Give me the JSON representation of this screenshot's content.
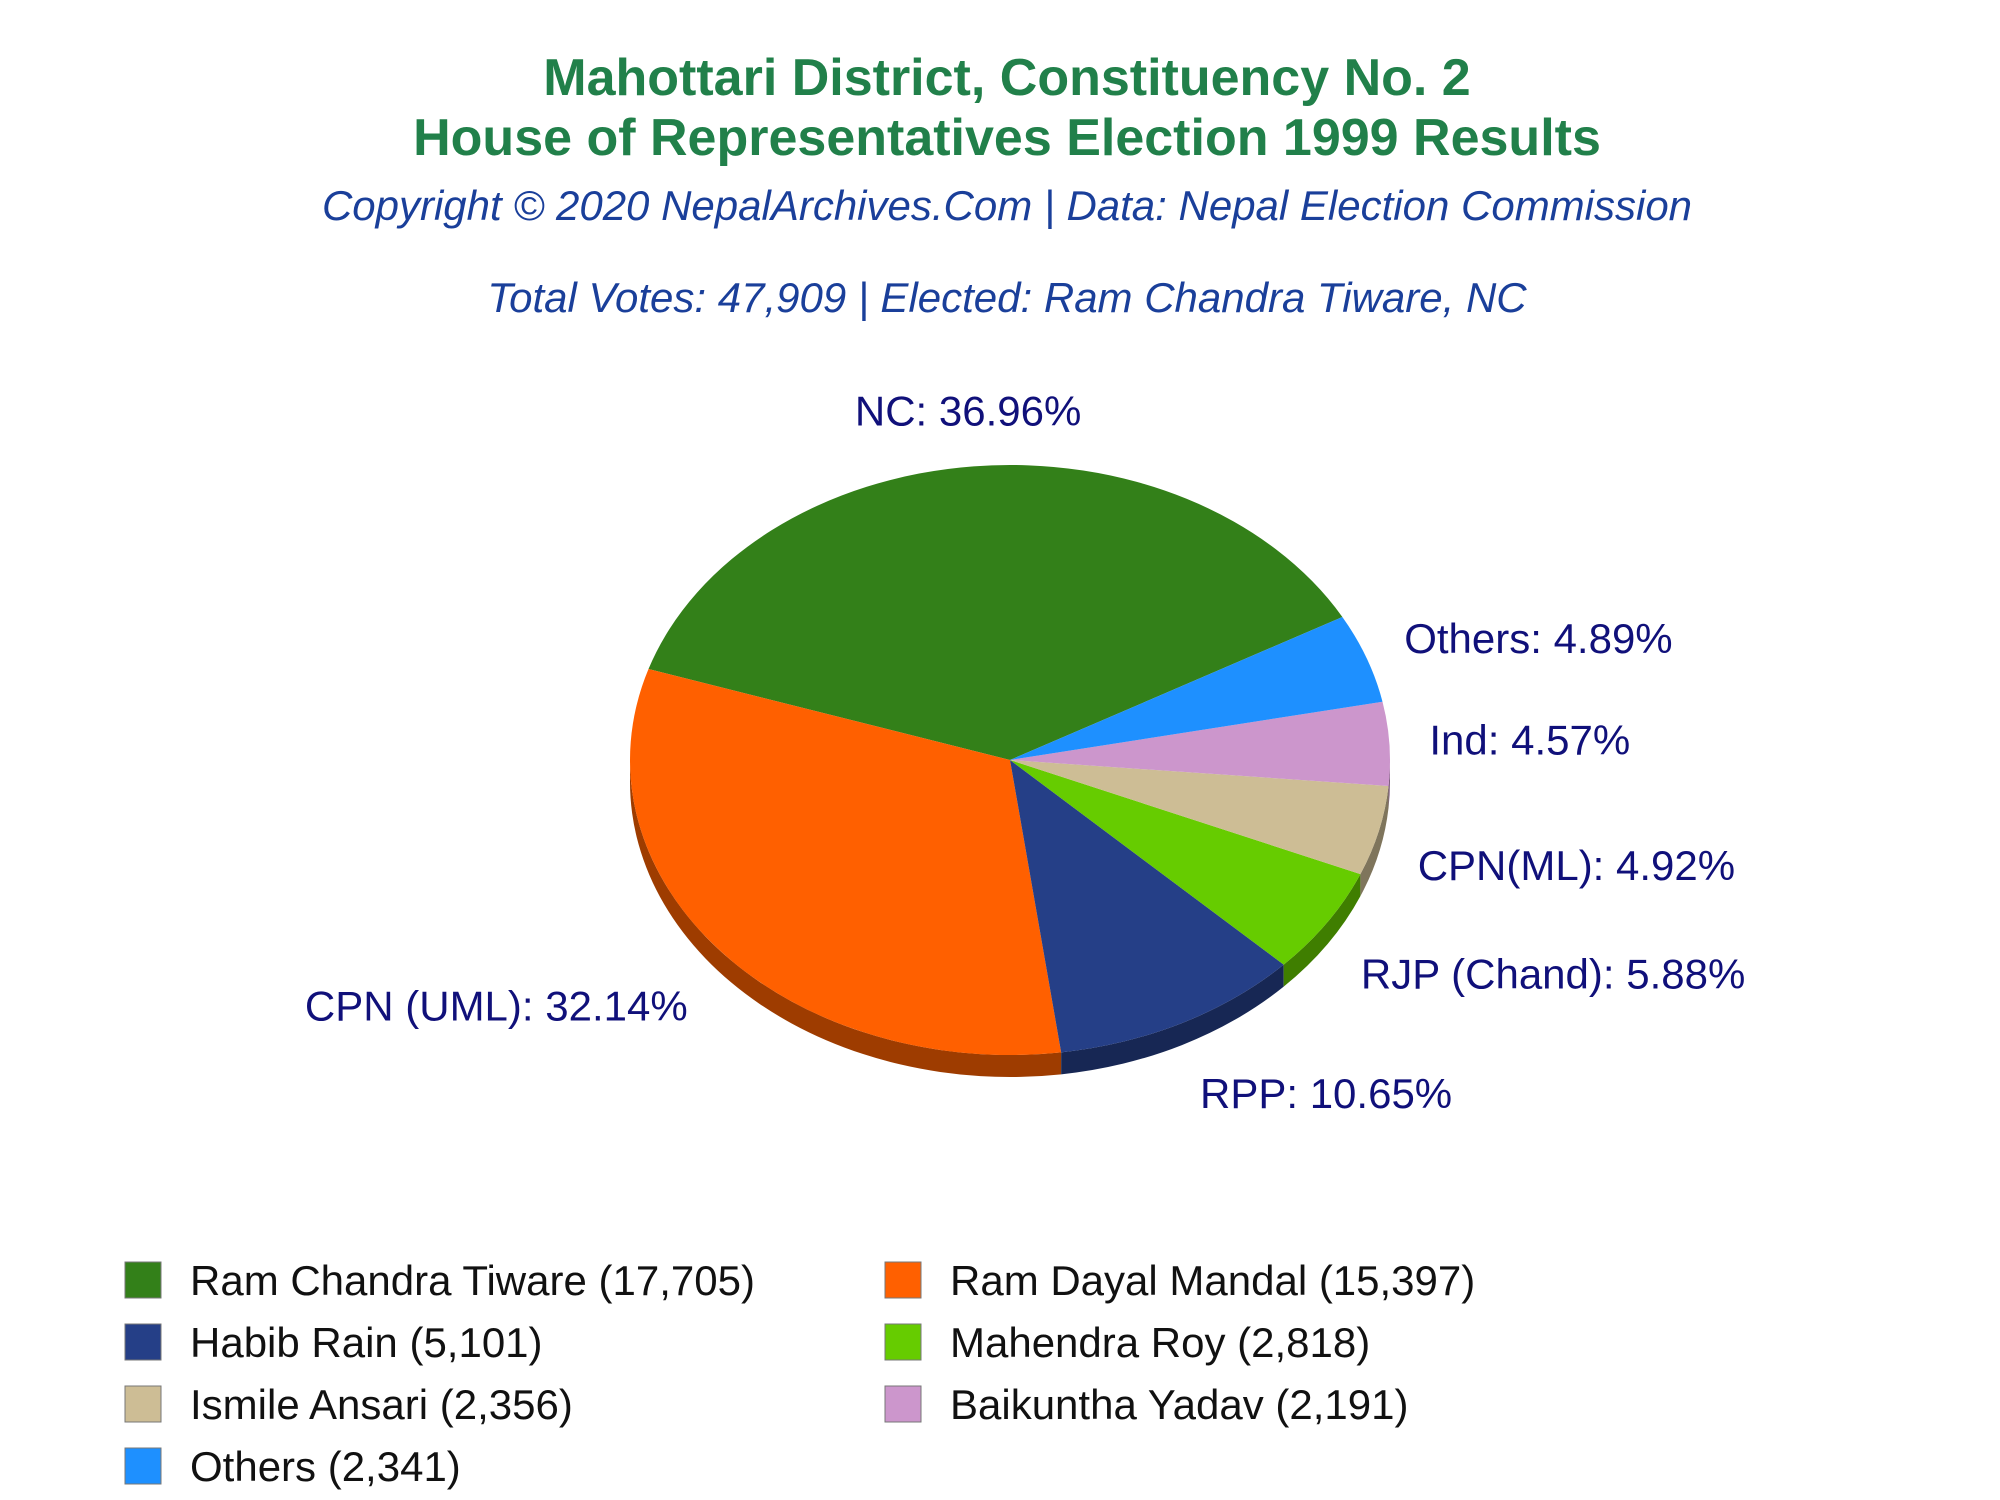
{
  "chart_data": {
    "type": "pie",
    "title": "Mahottari District, Constituency No. 2",
    "subtitle": "House of Representatives Election 1999 Results",
    "copyright": "Copyright © 2020 NepalArchives.Com | Data: Nepal Election Commission",
    "summary": "Total Votes: 47,909 | Elected: Ram Chandra Tiware, NC",
    "slices": [
      {
        "party": "NC",
        "label": "NC: 36.96%",
        "percent": 36.96,
        "candidate": "Ram Chandra Tiware (17,705)",
        "votes": 17705,
        "color": "#338019"
      },
      {
        "party": "CPN (UML)",
        "label": "CPN (UML): 32.14%",
        "percent": 32.14,
        "candidate": "Ram Dayal Mandal (15,397)",
        "votes": 15397,
        "color": "#ff6000"
      },
      {
        "party": "RPP",
        "label": "RPP: 10.65%",
        "percent": 10.65,
        "candidate": "Habib Rain (5,101)",
        "votes": 5101,
        "color": "#253f87"
      },
      {
        "party": "RJP (Chand)",
        "label": "RJP (Chand): 5.88%",
        "percent": 5.88,
        "candidate": "Mahendra Roy (2,818)",
        "votes": 2818,
        "color": "#66cc00"
      },
      {
        "party": "CPN(ML)",
        "label": "CPN(ML): 4.92%",
        "percent": 4.92,
        "candidate": "Ismile Ansari (2,356)",
        "votes": 2356,
        "color": "#cdbd95"
      },
      {
        "party": "Ind",
        "label": "Ind: 4.57%",
        "percent": 4.57,
        "candidate": "Baikuntha Yadav (2,191)",
        "votes": 2191,
        "color": "#cc96cc"
      },
      {
        "party": "Others",
        "label": "Others: 4.89%",
        "percent": 4.89,
        "candidate": "Others (2,341)",
        "votes": 2341,
        "color": "#1e90ff"
      }
    ],
    "legend_placement": "bottom"
  }
}
